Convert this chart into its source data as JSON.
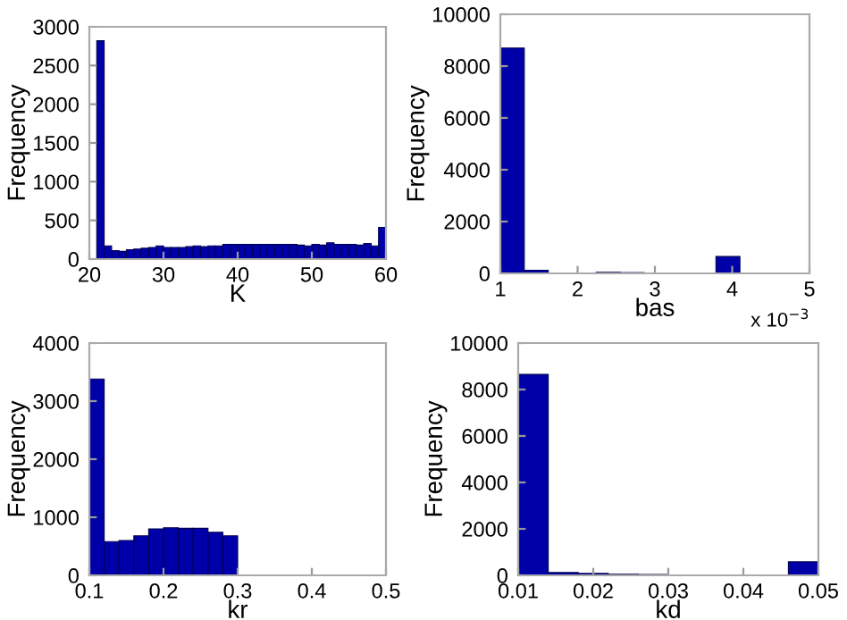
{
  "chart_data": [
    {
      "type": "histogram",
      "xlabel": "K",
      "ylabel": "Frequency",
      "color": "#0000a8",
      "bins": [
        21,
        22,
        23,
        24,
        25,
        26,
        27,
        28,
        29,
        30,
        31,
        32,
        33,
        34,
        35,
        36,
        37,
        38,
        39,
        40,
        41,
        42,
        43,
        44,
        45,
        46,
        47,
        48,
        49,
        50,
        51,
        52,
        53,
        54,
        55,
        56,
        57,
        58,
        59,
        60
      ],
      "values": [
        2820,
        170,
        110,
        100,
        120,
        130,
        140,
        150,
        170,
        150,
        150,
        150,
        160,
        170,
        160,
        170,
        170,
        190,
        190,
        190,
        190,
        190,
        190,
        190,
        190,
        190,
        190,
        180,
        170,
        190,
        180,
        210,
        190,
        190,
        190,
        180,
        200,
        170,
        410
      ],
      "xlim": [
        20,
        60
      ],
      "xticks": [
        20,
        30,
        40,
        50,
        60
      ],
      "ylim": [
        0,
        3000
      ],
      "yticks": [
        0,
        500,
        1000,
        1500,
        2000,
        2500,
        3000
      ],
      "grid": false
    },
    {
      "type": "histogram",
      "xlabel": "bas",
      "ylabel": "Frequency",
      "color": "#0000a8",
      "bins": [
        1.0,
        1.31,
        1.62,
        1.93,
        2.24,
        2.55,
        2.86,
        3.17,
        3.48,
        3.79,
        4.1
      ],
      "values": [
        8700,
        120,
        null,
        null,
        40,
        30,
        null,
        null,
        10,
        650
      ],
      "xlim": [
        1,
        5
      ],
      "xticks": [
        1,
        2,
        3,
        4,
        5
      ],
      "ylim": [
        0,
        10000
      ],
      "yticks": [
        0,
        2000,
        4000,
        6000,
        8000,
        10000
      ],
      "grid": false,
      "annotations": [
        "x 10$^{−3}$"
      ]
    },
    {
      "type": "histogram",
      "xlabel": "kr",
      "ylabel": "Frequency",
      "color": "#0000a8",
      "bins": [
        0.1,
        0.12,
        0.14,
        0.16,
        0.18,
        0.2,
        0.22,
        0.24,
        0.26,
        0.28,
        0.3
      ],
      "values": [
        3380,
        580,
        600,
        680,
        800,
        820,
        810,
        810,
        740,
        680
      ],
      "xlim": [
        0.1,
        0.5
      ],
      "xticks": [
        0.1,
        0.2,
        0.3,
        0.4,
        0.5
      ],
      "ylim": [
        0,
        4000
      ],
      "yticks": [
        0,
        1000,
        2000,
        3000,
        4000
      ],
      "grid": false
    },
    {
      "type": "histogram",
      "xlabel": "kd",
      "ylabel": "Frequency",
      "color": "#0000a8",
      "bins": [
        0.01,
        0.014,
        0.018,
        0.022,
        0.026,
        0.03,
        0.034,
        0.038,
        0.042,
        0.046,
        0.05
      ],
      "values": [
        8650,
        120,
        80,
        50,
        40,
        null,
        20,
        10,
        10,
        580
      ],
      "xlim": [
        0.01,
        0.05
      ],
      "xticks": [
        0.01,
        0.02,
        0.03,
        0.04,
        0.05
      ],
      "ylim": [
        0,
        10000
      ],
      "yticks": [
        0,
        2000,
        4000,
        6000,
        8000,
        10000
      ],
      "grid": false
    }
  ]
}
